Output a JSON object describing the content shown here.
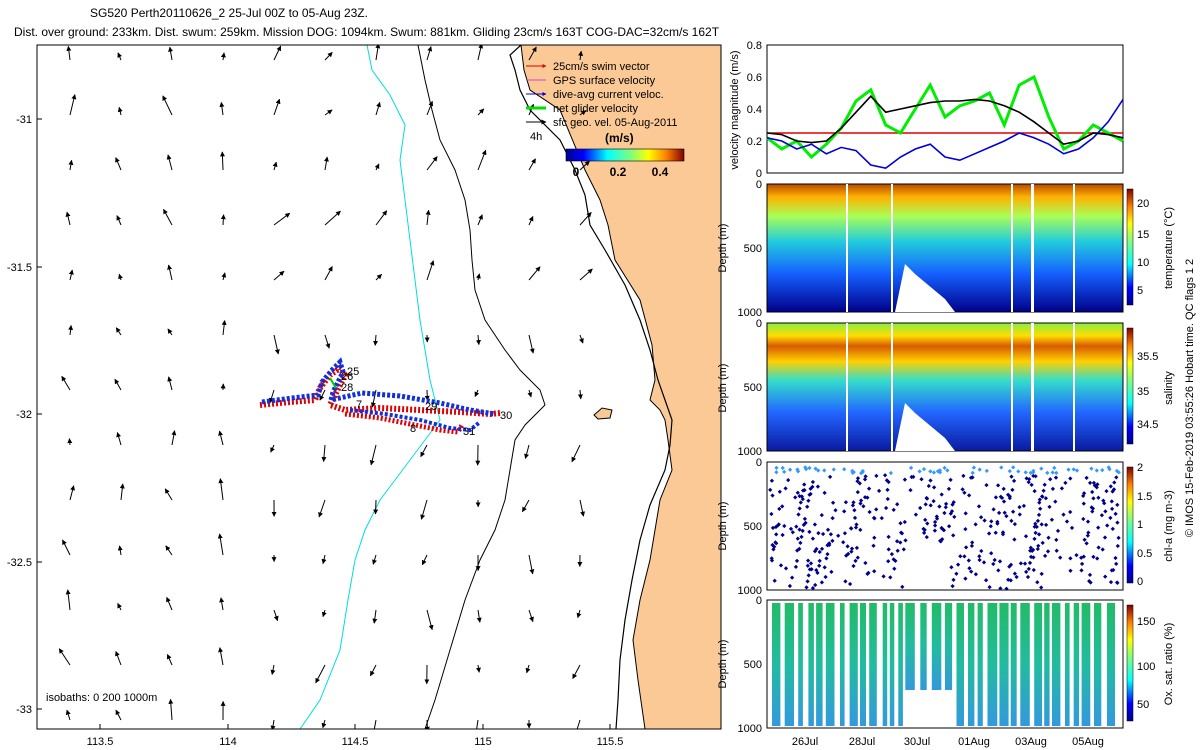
{
  "title": {
    "line1": "SG520 Perth20110626_2 25-Jul 00Z to 05-Aug 23Z.",
    "line2": "Dist. over ground: 233km. Dist. swum: 259km. Mission DOG: 1094km. Swum: 881km. Gliding 23cm/s 163T COG-DAC=32cm/s 162T"
  },
  "map": {
    "x_ticks": [
      "113.5",
      "114",
      "114.5",
      "115",
      "115.5"
    ],
    "y_ticks": [
      "-31",
      "-31.5",
      "-32",
      "-32.5",
      "-33"
    ],
    "legend": [
      "25cm/s swim vector",
      "GPS surface velocity",
      "dive-avg current veloc.",
      "net glider velocity",
      "sfc geo. vel. 05-Aug-2011"
    ],
    "legend_colors": [
      "#e00000",
      "#d040d0",
      "#0000cc",
      "#00dd00",
      "#000000"
    ],
    "arrow_age": "4h",
    "colorbar_title": "(m/s)",
    "colorbar_ticks": [
      "0",
      "0.2",
      "0.4"
    ],
    "isobaths": "isobaths: 0   200   1000m",
    "day_labels": [
      "25",
      "26",
      "28",
      "7",
      "29",
      "30",
      "31",
      "8"
    ],
    "land_color": "#fbc996",
    "isobath_200_color": "#00dddd"
  },
  "chart_data": [
    {
      "type": "line",
      "title": "",
      "ylabel": "velocity magnitude (m/s)",
      "ylim": [
        0,
        0.8
      ],
      "y_ticks": [
        "0",
        "0.2",
        "0.4",
        "0.6",
        "0.8"
      ],
      "x": [
        0,
        0.5,
        1,
        1.5,
        2,
        2.5,
        3,
        3.5,
        4,
        4.5,
        5,
        5.5,
        6,
        6.5,
        7,
        7.5,
        8,
        8.5,
        9,
        9.5,
        10,
        10.5,
        11,
        11.5,
        12
      ],
      "series": [
        {
          "name": "reference swim speed",
          "color": "#e00000",
          "values": [
            0.25,
            0.25,
            0.25,
            0.25,
            0.25,
            0.25,
            0.25,
            0.25,
            0.25,
            0.25,
            0.25,
            0.25,
            0.25,
            0.25,
            0.25,
            0.25,
            0.25,
            0.25,
            0.25,
            0.25,
            0.25,
            0.25,
            0.25,
            0.25,
            0.25
          ]
        },
        {
          "name": "net glider velocity",
          "color": "#00ee00",
          "values": [
            0.22,
            0.15,
            0.2,
            0.1,
            0.18,
            0.28,
            0.45,
            0.52,
            0.3,
            0.25,
            0.4,
            0.55,
            0.35,
            0.42,
            0.45,
            0.5,
            0.3,
            0.55,
            0.6,
            0.35,
            0.15,
            0.2,
            0.3,
            0.25,
            0.2
          ]
        },
        {
          "name": "dive-avg current",
          "color": "#0000dd",
          "values": [
            0.22,
            0.2,
            0.15,
            0.18,
            0.12,
            0.16,
            0.14,
            0.05,
            0.03,
            0.1,
            0.15,
            0.18,
            0.1,
            0.08,
            0.12,
            0.16,
            0.2,
            0.25,
            0.22,
            0.18,
            0.12,
            0.15,
            0.22,
            0.32,
            0.46
          ]
        },
        {
          "name": "GPS surface velocity",
          "color": "#000000",
          "values": [
            0.25,
            0.24,
            0.2,
            0.19,
            0.2,
            0.28,
            0.38,
            0.48,
            0.38,
            0.4,
            0.42,
            0.44,
            0.45,
            0.45,
            0.46,
            0.45,
            0.42,
            0.38,
            0.32,
            0.25,
            0.18,
            0.2,
            0.25,
            0.24,
            0.22
          ]
        }
      ]
    },
    {
      "type": "heatmap",
      "ylabel": "Depth (m)",
      "y_ticks": [
        "0",
        "500",
        "1000"
      ],
      "colorbar_label": "temperature (°C)",
      "colorbar_ticks": [
        "20",
        "15",
        "10",
        "5"
      ]
    },
    {
      "type": "heatmap",
      "ylabel": "Depth (m)",
      "y_ticks": [
        "0",
        "500",
        "1000"
      ],
      "colorbar_label": "salinity",
      "colorbar_ticks": [
        "35.5",
        "35",
        "34.5"
      ]
    },
    {
      "type": "heatmap",
      "ylabel": "Depth (m)",
      "y_ticks": [
        "0",
        "500",
        "1000"
      ],
      "colorbar_label": "chl-a (mg m-3)",
      "colorbar_ticks": [
        "2",
        "1.5",
        "1",
        "0.5",
        "0"
      ]
    },
    {
      "type": "heatmap",
      "ylabel": "Depth (m)",
      "y_ticks": [
        "0",
        "500",
        "1000"
      ],
      "colorbar_label": "Ox. sat. ratio (%)",
      "colorbar_ticks": [
        "150",
        "100",
        "50"
      ]
    }
  ],
  "time_axis": {
    "labels": [
      "26Jul",
      "28Jul",
      "30Jul",
      "01Aug",
      "03Aug",
      "05Aug"
    ]
  },
  "side_note": "© IMOS 15-Feb-2019 03:55:26 Hobart time. QC flags 1  2"
}
